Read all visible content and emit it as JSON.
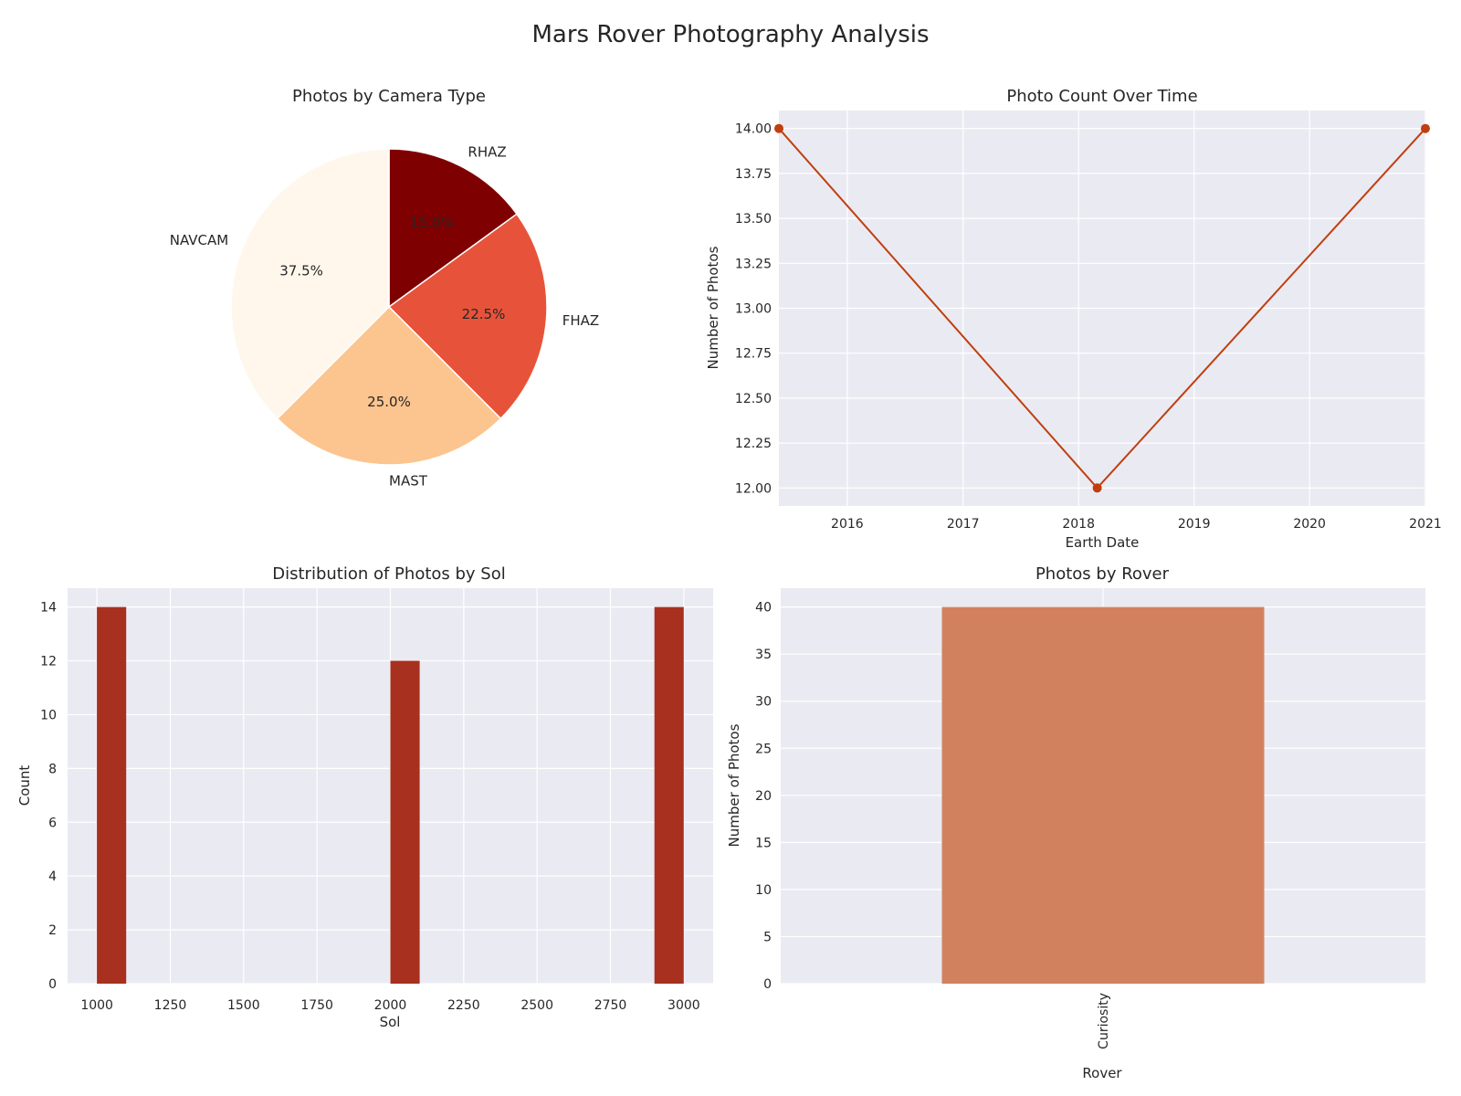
{
  "figure": {
    "title": "Mars Rover Photography Analysis"
  },
  "chart_data": [
    {
      "type": "pie",
      "title": "Photos by Camera Type",
      "labels": [
        "RHAZ",
        "FHAZ",
        "MAST",
        "NAVCAM"
      ],
      "values": [
        15.0,
        22.5,
        25.0,
        37.5
      ],
      "pct_labels": [
        "15.0%",
        "22.5%",
        "25.0%",
        "37.5%"
      ],
      "colors": [
        "#7f0000",
        "#e7533a",
        "#fcc48e",
        "#fff7ec"
      ],
      "start_angle_deg": 90,
      "direction": "clockwise"
    },
    {
      "type": "line",
      "title": "Photo Count Over Time",
      "xlabel": "Earth Date",
      "ylabel": "Number of Photos",
      "x": [
        "2015-05-30",
        "2018-03-01",
        "2021-01-01"
      ],
      "y": [
        14,
        12,
        14
      ],
      "x_ticks": [
        "2016",
        "2017",
        "2018",
        "2019",
        "2020",
        "2021"
      ],
      "y_ticks": [
        "12.00",
        "12.25",
        "12.50",
        "12.75",
        "13.00",
        "13.25",
        "13.50",
        "13.75",
        "14.00"
      ],
      "ylim": [
        11.9,
        14.1
      ],
      "color": "#bf3f0f",
      "grid": true
    },
    {
      "type": "bar",
      "subtype": "histogram",
      "title": "Distribution of Photos by Sol",
      "xlabel": "Sol",
      "ylabel": "Count",
      "bins": [
        {
          "start": 1000,
          "end": 1100,
          "count": 14
        },
        {
          "start": 2000,
          "end": 2100,
          "count": 12
        },
        {
          "start": 2900,
          "end": 3000,
          "count": 14
        }
      ],
      "xlim": [
        900,
        3100
      ],
      "ylim": [
        0,
        14.7
      ],
      "x_ticks": [
        "1000",
        "1250",
        "1500",
        "1750",
        "2000",
        "2250",
        "2500",
        "2750",
        "3000"
      ],
      "y_ticks": [
        "0",
        "2",
        "4",
        "6",
        "8",
        "10",
        "12",
        "14"
      ],
      "color": "#a8301e",
      "grid": true
    },
    {
      "type": "bar",
      "title": "Photos by Rover",
      "xlabel": "Rover",
      "ylabel": "Number of Photos",
      "categories": [
        "Curiosity"
      ],
      "values": [
        40
      ],
      "ylim": [
        0,
        42
      ],
      "y_ticks": [
        "0",
        "5",
        "10",
        "15",
        "20",
        "25",
        "30",
        "35",
        "40"
      ],
      "color": "#d2815f",
      "grid": true
    }
  ]
}
